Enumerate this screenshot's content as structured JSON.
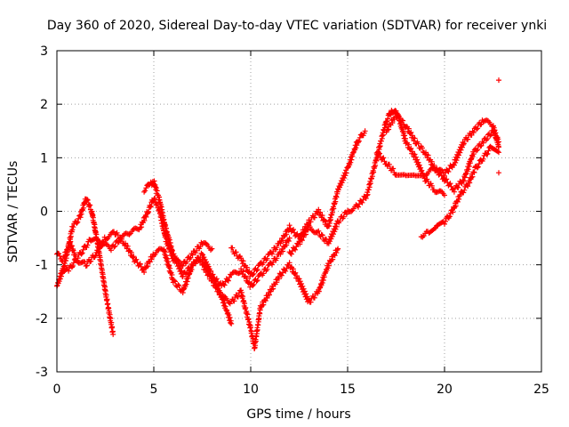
{
  "chart_data": {
    "type": "scatter",
    "title": "Day 360 of 2020, Sidereal Day-to-day VTEC variation (SDTVAR) for receiver ynki",
    "xlabel": "GPS time / hours",
    "ylabel": "SDTVAR / TECUs",
    "xlim": [
      0,
      25
    ],
    "ylim": [
      -3,
      3
    ],
    "xticks": [
      0,
      5,
      10,
      15,
      20,
      25
    ],
    "yticks": [
      -3,
      -2,
      -1,
      0,
      1,
      2,
      3
    ],
    "grid": true,
    "marker": "plus",
    "series_color": "#ff0000",
    "series": [
      {
        "name": "s1",
        "x": [
          0.0,
          0.4,
          0.8,
          1.2,
          1.5,
          1.8,
          2.1,
          2.5,
          2.9
        ],
        "y": [
          -1.4,
          -1.0,
          -0.3,
          -0.1,
          0.25,
          0.0,
          -0.6,
          -1.5,
          -2.3
        ]
      },
      {
        "name": "s2",
        "x": [
          0.0,
          0.3,
          0.7,
          1.0,
          1.4,
          1.8,
          2.3,
          2.8,
          3.3,
          3.8,
          4.3,
          4.7,
          5.0,
          5.3,
          5.6,
          6.0,
          6.5,
          7.0,
          7.5,
          8.0
        ],
        "y": [
          -0.8,
          -0.9,
          -0.6,
          -0.9,
          -0.7,
          -0.5,
          -0.6,
          -0.7,
          -0.5,
          -0.4,
          -0.3,
          0.0,
          0.25,
          0.0,
          -0.5,
          -0.9,
          -1.0,
          -0.8,
          -0.6,
          -0.7
        ]
      },
      {
        "name": "s3",
        "x": [
          0.2,
          0.6,
          1.0,
          1.5,
          2.0,
          2.5,
          3.0,
          3.5,
          4.0,
          4.5,
          5.0,
          5.5,
          6.0,
          6.5,
          7.0,
          7.5,
          8.0,
          8.5,
          9.0
        ],
        "y": [
          -1.2,
          -1.1,
          -0.9,
          -1.0,
          -0.8,
          -0.5,
          -0.4,
          -0.6,
          -0.9,
          -1.1,
          -0.8,
          -0.7,
          -1.3,
          -1.5,
          -1.0,
          -0.8,
          -1.2,
          -1.6,
          -2.1
        ]
      },
      {
        "name": "s4",
        "x": [
          4.5,
          4.8,
          5.0,
          5.3,
          5.6,
          6.0,
          6.5,
          7.0,
          7.5,
          8.0,
          8.5,
          9.0,
          9.5,
          10.0,
          10.5,
          11.0,
          11.5,
          12.0
        ],
        "y": [
          0.4,
          0.5,
          0.55,
          0.2,
          -0.3,
          -0.8,
          -1.2,
          -1.0,
          -0.9,
          -1.2,
          -1.4,
          -1.2,
          -1.1,
          -1.4,
          -1.2,
          -1.0,
          -0.8,
          -0.5
        ]
      },
      {
        "name": "s5",
        "x": [
          7.5,
          8.0,
          8.5,
          9.0,
          9.5,
          10.0,
          10.2,
          10.5,
          11.0,
          11.5,
          12.0,
          12.5,
          13.0,
          13.5,
          14.0,
          14.5
        ],
        "y": [
          -1.0,
          -1.3,
          -1.6,
          -1.7,
          -1.5,
          -2.2,
          -2.55,
          -1.8,
          -1.5,
          -1.2,
          -1.0,
          -1.3,
          -1.7,
          -1.5,
          -1.0,
          -0.7
        ]
      },
      {
        "name": "s6",
        "x": [
          9.0,
          9.5,
          10.0,
          10.5,
          11.0,
          11.5,
          12.0,
          12.5,
          13.0,
          13.5,
          14.0,
          14.5,
          15.0,
          15.5,
          15.9
        ],
        "y": [
          -0.7,
          -0.9,
          -1.2,
          -1.0,
          -0.8,
          -0.6,
          -0.3,
          -0.5,
          -0.2,
          0.0,
          -0.3,
          0.4,
          0.8,
          1.3,
          1.5
        ]
      },
      {
        "name": "s7",
        "x": [
          12.0,
          12.5,
          13.0,
          13.5,
          14.0,
          14.5,
          15.0,
          15.5,
          16.0,
          16.5,
          17.0,
          17.3,
          17.6,
          18.0,
          18.5,
          19.0,
          19.5,
          20.0
        ],
        "y": [
          -0.8,
          -0.6,
          -0.3,
          -0.4,
          -0.6,
          -0.2,
          0.0,
          0.1,
          0.3,
          1.0,
          1.7,
          1.9,
          1.8,
          1.3,
          1.0,
          0.6,
          0.4,
          0.3
        ]
      },
      {
        "name": "s8",
        "x": [
          16.5,
          17.0,
          17.5,
          18.0,
          18.5,
          19.0,
          19.5,
          20.0,
          20.5,
          21.0,
          21.5,
          22.0,
          22.5,
          22.8
        ],
        "y": [
          1.1,
          0.9,
          0.7,
          0.7,
          0.7,
          0.7,
          0.8,
          0.6,
          0.4,
          0.6,
          1.1,
          1.3,
          1.5,
          1.3
        ]
      },
      {
        "name": "s9",
        "x": [
          17.0,
          17.5,
          18.0,
          18.5,
          19.0,
          19.5,
          20.0,
          20.5,
          21.0,
          21.5,
          22.0,
          22.5,
          22.8
        ],
        "y": [
          1.5,
          1.8,
          1.6,
          1.3,
          1.1,
          0.8,
          0.7,
          0.9,
          1.3,
          1.5,
          1.7,
          1.6,
          1.2
        ]
      },
      {
        "name": "s10",
        "x": [
          18.8,
          19.2,
          19.6,
          20.0,
          20.4,
          20.8,
          21.2,
          21.6,
          22.0,
          22.4,
          22.8
        ],
        "y": [
          -0.45,
          -0.4,
          -0.3,
          -0.2,
          0.0,
          0.3,
          0.5,
          0.8,
          1.0,
          1.2,
          1.1
        ]
      },
      {
        "name": "s11",
        "x": [
          22.8,
          22.8
        ],
        "y": [
          2.45,
          0.72
        ]
      }
    ]
  }
}
